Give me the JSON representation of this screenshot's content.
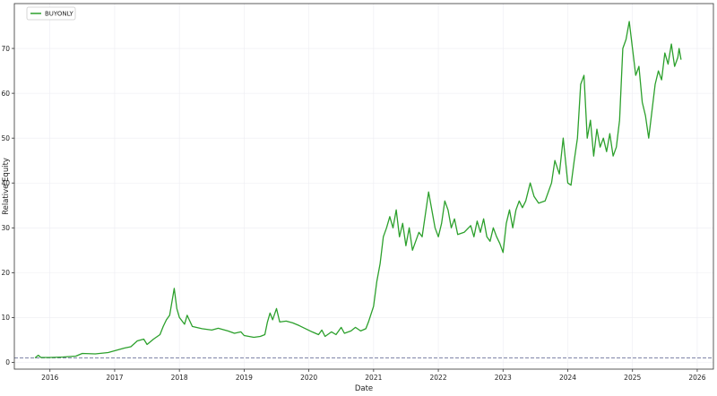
{
  "chart_data": {
    "type": "line",
    "title": "",
    "xlabel": "Date",
    "ylabel": "Relative Equity",
    "xlim": [
      2015.45,
      2026.25
    ],
    "ylim": [
      -1.5,
      80
    ],
    "grid": true,
    "legend_position": "top-left",
    "baseline": {
      "y": 1,
      "style": "dashed"
    },
    "x_ticks": [
      {
        "value": 2016,
        "label": "2016"
      },
      {
        "value": 2017,
        "label": "2017"
      },
      {
        "value": 2018,
        "label": "2018"
      },
      {
        "value": 2019,
        "label": "2019"
      },
      {
        "value": 2020,
        "label": "2020"
      },
      {
        "value": 2021,
        "label": "2021"
      },
      {
        "value": 2022,
        "label": "2022"
      },
      {
        "value": 2023,
        "label": "2023"
      },
      {
        "value": 2024,
        "label": "2024"
      },
      {
        "value": 2025,
        "label": "2025"
      },
      {
        "value": 2026,
        "label": "2026"
      }
    ],
    "y_ticks": [
      {
        "value": 0,
        "label": "0"
      },
      {
        "value": 10,
        "label": "10"
      },
      {
        "value": 20,
        "label": "20"
      },
      {
        "value": 30,
        "label": "30"
      },
      {
        "value": 40,
        "label": "40"
      },
      {
        "value": 50,
        "label": "50"
      },
      {
        "value": 60,
        "label": "60"
      },
      {
        "value": 70,
        "label": "70"
      }
    ],
    "series": [
      {
        "name": "BUYONLY",
        "color": "#2ca02c",
        "points": [
          [
            2015.77,
            1.0
          ],
          [
            2015.82,
            1.6
          ],
          [
            2015.86,
            1.1
          ],
          [
            2016.0,
            1.1
          ],
          [
            2016.2,
            1.2
          ],
          [
            2016.4,
            1.4
          ],
          [
            2016.5,
            2.0
          ],
          [
            2016.7,
            1.9
          ],
          [
            2016.9,
            2.2
          ],
          [
            2017.0,
            2.6
          ],
          [
            2017.15,
            3.2
          ],
          [
            2017.25,
            3.5
          ],
          [
            2017.35,
            4.8
          ],
          [
            2017.45,
            5.2
          ],
          [
            2017.5,
            4.0
          ],
          [
            2017.6,
            5.2
          ],
          [
            2017.7,
            6.2
          ],
          [
            2017.75,
            8.0
          ],
          [
            2017.8,
            9.5
          ],
          [
            2017.85,
            10.5
          ],
          [
            2017.92,
            16.5
          ],
          [
            2017.96,
            12.0
          ],
          [
            2018.0,
            10.0
          ],
          [
            2018.08,
            8.5
          ],
          [
            2018.12,
            10.5
          ],
          [
            2018.2,
            8.0
          ],
          [
            2018.35,
            7.5
          ],
          [
            2018.5,
            7.2
          ],
          [
            2018.6,
            7.6
          ],
          [
            2018.75,
            7.0
          ],
          [
            2018.85,
            6.5
          ],
          [
            2018.95,
            6.8
          ],
          [
            2019.0,
            6.0
          ],
          [
            2019.15,
            5.6
          ],
          [
            2019.25,
            5.8
          ],
          [
            2019.32,
            6.2
          ],
          [
            2019.36,
            9.0
          ],
          [
            2019.4,
            11.0
          ],
          [
            2019.44,
            9.5
          ],
          [
            2019.5,
            12.0
          ],
          [
            2019.55,
            9.0
          ],
          [
            2019.65,
            9.2
          ],
          [
            2019.75,
            8.8
          ],
          [
            2019.85,
            8.2
          ],
          [
            2019.95,
            7.5
          ],
          [
            2020.05,
            6.8
          ],
          [
            2020.15,
            6.2
          ],
          [
            2020.2,
            7.2
          ],
          [
            2020.25,
            5.8
          ],
          [
            2020.35,
            6.8
          ],
          [
            2020.42,
            6.2
          ],
          [
            2020.5,
            7.8
          ],
          [
            2020.55,
            6.5
          ],
          [
            2020.65,
            7.0
          ],
          [
            2020.72,
            7.8
          ],
          [
            2020.8,
            7.0
          ],
          [
            2020.88,
            7.5
          ],
          [
            2020.92,
            9.0
          ],
          [
            2021.0,
            12.5
          ],
          [
            2021.05,
            18.0
          ],
          [
            2021.1,
            22.0
          ],
          [
            2021.15,
            28.0
          ],
          [
            2021.2,
            30.0
          ],
          [
            2021.25,
            32.5
          ],
          [
            2021.3,
            30.0
          ],
          [
            2021.35,
            34.0
          ],
          [
            2021.4,
            28.0
          ],
          [
            2021.45,
            31.0
          ],
          [
            2021.5,
            26.0
          ],
          [
            2021.55,
            30.0
          ],
          [
            2021.6,
            25.0
          ],
          [
            2021.65,
            27.0
          ],
          [
            2021.7,
            29.0
          ],
          [
            2021.75,
            28.0
          ],
          [
            2021.8,
            33.0
          ],
          [
            2021.85,
            38.0
          ],
          [
            2021.9,
            34.0
          ],
          [
            2021.95,
            30.0
          ],
          [
            2022.0,
            28.0
          ],
          [
            2022.05,
            31.0
          ],
          [
            2022.1,
            36.0
          ],
          [
            2022.15,
            34.0
          ],
          [
            2022.2,
            30.0
          ],
          [
            2022.25,
            32.0
          ],
          [
            2022.3,
            28.5
          ],
          [
            2022.4,
            29.0
          ],
          [
            2022.5,
            30.5
          ],
          [
            2022.55,
            28.0
          ],
          [
            2022.6,
            31.5
          ],
          [
            2022.65,
            29.0
          ],
          [
            2022.7,
            32.0
          ],
          [
            2022.75,
            28.0
          ],
          [
            2022.8,
            27.0
          ],
          [
            2022.85,
            30.0
          ],
          [
            2022.9,
            28.0
          ],
          [
            2022.95,
            26.5
          ],
          [
            2023.0,
            24.5
          ],
          [
            2023.05,
            31.0
          ],
          [
            2023.1,
            34.0
          ],
          [
            2023.15,
            30.0
          ],
          [
            2023.2,
            34.0
          ],
          [
            2023.25,
            36.0
          ],
          [
            2023.3,
            34.5
          ],
          [
            2023.35,
            36.0
          ],
          [
            2023.42,
            40.0
          ],
          [
            2023.48,
            37.0
          ],
          [
            2023.55,
            35.5
          ],
          [
            2023.65,
            36.0
          ],
          [
            2023.75,
            40.0
          ],
          [
            2023.8,
            45.0
          ],
          [
            2023.87,
            42.0
          ],
          [
            2023.93,
            50.0
          ],
          [
            2024.0,
            40.0
          ],
          [
            2024.05,
            39.5
          ],
          [
            2024.1,
            45.0
          ],
          [
            2024.15,
            50.0
          ],
          [
            2024.2,
            62.0
          ],
          [
            2024.25,
            64.0
          ],
          [
            2024.3,
            50.0
          ],
          [
            2024.35,
            54.0
          ],
          [
            2024.4,
            46.0
          ],
          [
            2024.45,
            52.0
          ],
          [
            2024.5,
            48.0
          ],
          [
            2024.55,
            50.0
          ],
          [
            2024.6,
            47.0
          ],
          [
            2024.65,
            51.0
          ],
          [
            2024.7,
            46.0
          ],
          [
            2024.75,
            48.0
          ],
          [
            2024.8,
            54.0
          ],
          [
            2024.85,
            70.0
          ],
          [
            2024.9,
            72.0
          ],
          [
            2024.95,
            76.0
          ],
          [
            2025.0,
            70.0
          ],
          [
            2025.05,
            64.0
          ],
          [
            2025.1,
            66.0
          ],
          [
            2025.15,
            58.0
          ],
          [
            2025.2,
            55.0
          ],
          [
            2025.25,
            50.0
          ],
          [
            2025.3,
            56.0
          ],
          [
            2025.35,
            62.0
          ],
          [
            2025.4,
            65.0
          ],
          [
            2025.45,
            63.0
          ],
          [
            2025.5,
            69.0
          ],
          [
            2025.55,
            66.5
          ],
          [
            2025.6,
            71.0
          ],
          [
            2025.65,
            66.0
          ],
          [
            2025.7,
            68.0
          ],
          [
            2025.72,
            70.0
          ],
          [
            2025.75,
            67.5
          ]
        ]
      }
    ]
  }
}
